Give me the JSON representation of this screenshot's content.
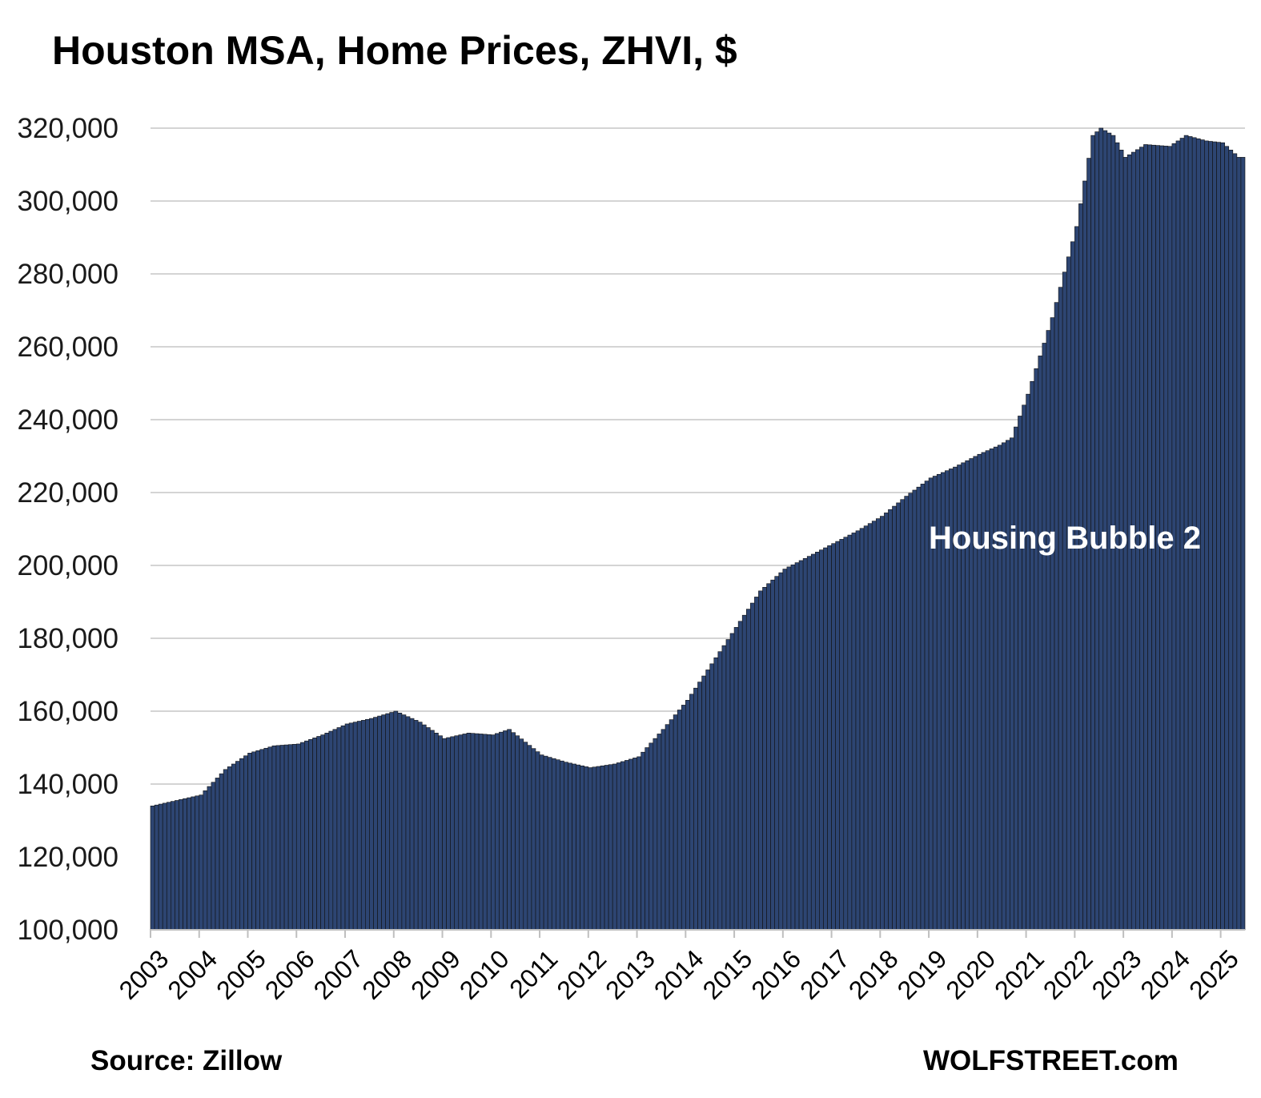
{
  "chart_data": {
    "type": "bar",
    "title": "Houston MSA, Home Prices, ZHVI, $",
    "xlabel": "",
    "ylabel": "",
    "ylim": [
      100000,
      320000
    ],
    "yticks": [
      "100,000",
      "120,000",
      "140,000",
      "160,000",
      "180,000",
      "200,000",
      "220,000",
      "240,000",
      "260,000",
      "280,000",
      "300,000",
      "320,000"
    ],
    "xticks": [
      "2003",
      "2004",
      "2005",
      "2006",
      "2007",
      "2008",
      "2009",
      "2010",
      "2011",
      "2012",
      "2013",
      "2014",
      "2015",
      "2016",
      "2017",
      "2018",
      "2019",
      "2020",
      "2021",
      "2022",
      "2023",
      "2024",
      "2025"
    ],
    "grid": true,
    "legend": "none",
    "bar_color": "#2d4572",
    "bar_edge_color": "#111111",
    "anchors": [
      [
        "2003-01",
        134000
      ],
      [
        "2004-01",
        137000
      ],
      [
        "2004-07",
        144000
      ],
      [
        "2005-01",
        148500
      ],
      [
        "2005-07",
        150500
      ],
      [
        "2006-01",
        151000
      ],
      [
        "2006-07",
        153500
      ],
      [
        "2007-01",
        156500
      ],
      [
        "2007-07",
        158000
      ],
      [
        "2008-01",
        160000
      ],
      [
        "2008-07",
        157000
      ],
      [
        "2009-01",
        152500
      ],
      [
        "2009-07",
        154000
      ],
      [
        "2010-01",
        153500
      ],
      [
        "2010-05",
        155000
      ],
      [
        "2011-01",
        148000
      ],
      [
        "2011-07",
        146000
      ],
      [
        "2012-01",
        144500
      ],
      [
        "2012-07",
        145500
      ],
      [
        "2013-01",
        147500
      ],
      [
        "2013-07",
        155000
      ],
      [
        "2014-01",
        163000
      ],
      [
        "2014-07",
        173000
      ],
      [
        "2015-01",
        183000
      ],
      [
        "2015-07",
        193000
      ],
      [
        "2016-01",
        199000
      ],
      [
        "2016-07",
        202500
      ],
      [
        "2017-01",
        206000
      ],
      [
        "2017-07",
        209500
      ],
      [
        "2018-01",
        213500
      ],
      [
        "2018-07",
        219000
      ],
      [
        "2019-01",
        224000
      ],
      [
        "2019-07",
        227000
      ],
      [
        "2020-01",
        230500
      ],
      [
        "2020-06",
        233000
      ],
      [
        "2020-09",
        235000
      ],
      [
        "2021-01",
        247000
      ],
      [
        "2021-07",
        268000
      ],
      [
        "2022-01",
        293000
      ],
      [
        "2022-05",
        318000
      ],
      [
        "2022-07",
        320000
      ],
      [
        "2022-10",
        318000
      ],
      [
        "2023-01",
        312000
      ],
      [
        "2023-06",
        315500
      ],
      [
        "2023-12",
        315000
      ],
      [
        "2024-04",
        318000
      ],
      [
        "2024-09",
        316500
      ],
      [
        "2025-01",
        316000
      ],
      [
        "2025-05",
        312000
      ]
    ],
    "annotations": [
      "Housing Bubble 2"
    ],
    "source": "Source: Zillow",
    "watermark": "WOLFSTREET.com"
  }
}
